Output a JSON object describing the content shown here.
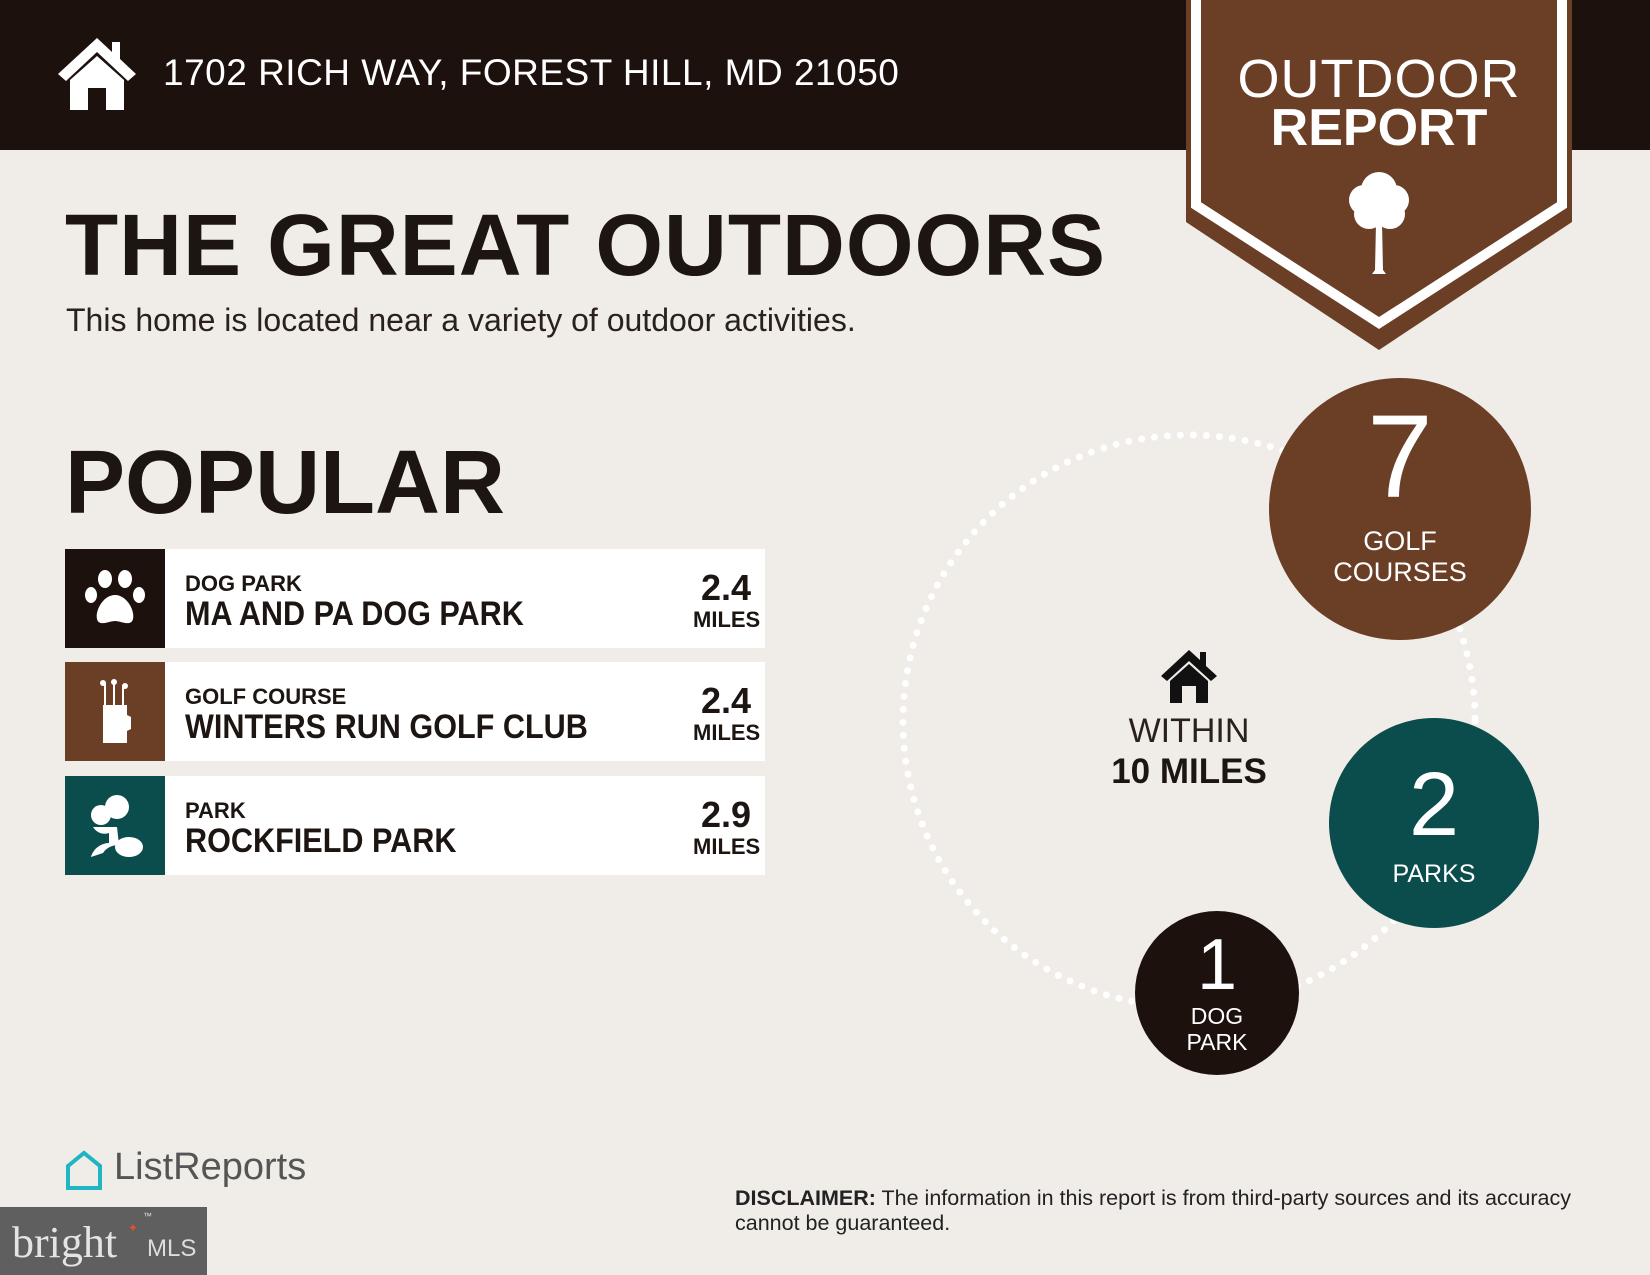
{
  "header": {
    "address": "1702 RICH WAY, FOREST HILL, MD 21050",
    "icon": "house-icon"
  },
  "badge": {
    "line1": "OUTDOOR",
    "line2": "REPORT",
    "icon": "tree-icon"
  },
  "title": "THE GREAT OUTDOORS",
  "subtitle": "This home is located near a variety of outdoor activities.",
  "popular": {
    "heading": "POPULAR",
    "items": [
      {
        "category": "DOG PARK",
        "name": "MA AND PA DOG PARK",
        "distance": "2.4",
        "unit": "MILES",
        "icon": "paw-icon",
        "color": "#1c110d"
      },
      {
        "category": "GOLF COURSE",
        "name": "WINTERS RUN GOLF CLUB",
        "distance": "2.4",
        "unit": "MILES",
        "icon": "golf-bag-icon",
        "color": "#6b3e26"
      },
      {
        "category": "PARK",
        "name": "ROCKFIELD PARK",
        "distance": "2.9",
        "unit": "MILES",
        "icon": "park-trees-icon",
        "color": "#0b4c4c"
      }
    ]
  },
  "radius": {
    "line1": "WITHIN",
    "line2": "10 MILES"
  },
  "counts": [
    {
      "count": "7",
      "line1": "GOLF",
      "line2": "COURSES",
      "color": "#6b3e26"
    },
    {
      "count": "2",
      "line1": "PARKS",
      "color": "#0b4c4c"
    },
    {
      "count": "1",
      "line1": "DOG",
      "line2": "PARK",
      "color": "#1c110d"
    }
  ],
  "footer": {
    "listreports": "ListReports",
    "bright": "bright",
    "mls": "MLS",
    "tm": "™",
    "disclaimer_label": "DISCLAIMER:",
    "disclaimer_text": " The information in this report is from third-party sources and its accuracy cannot be guaranteed."
  }
}
